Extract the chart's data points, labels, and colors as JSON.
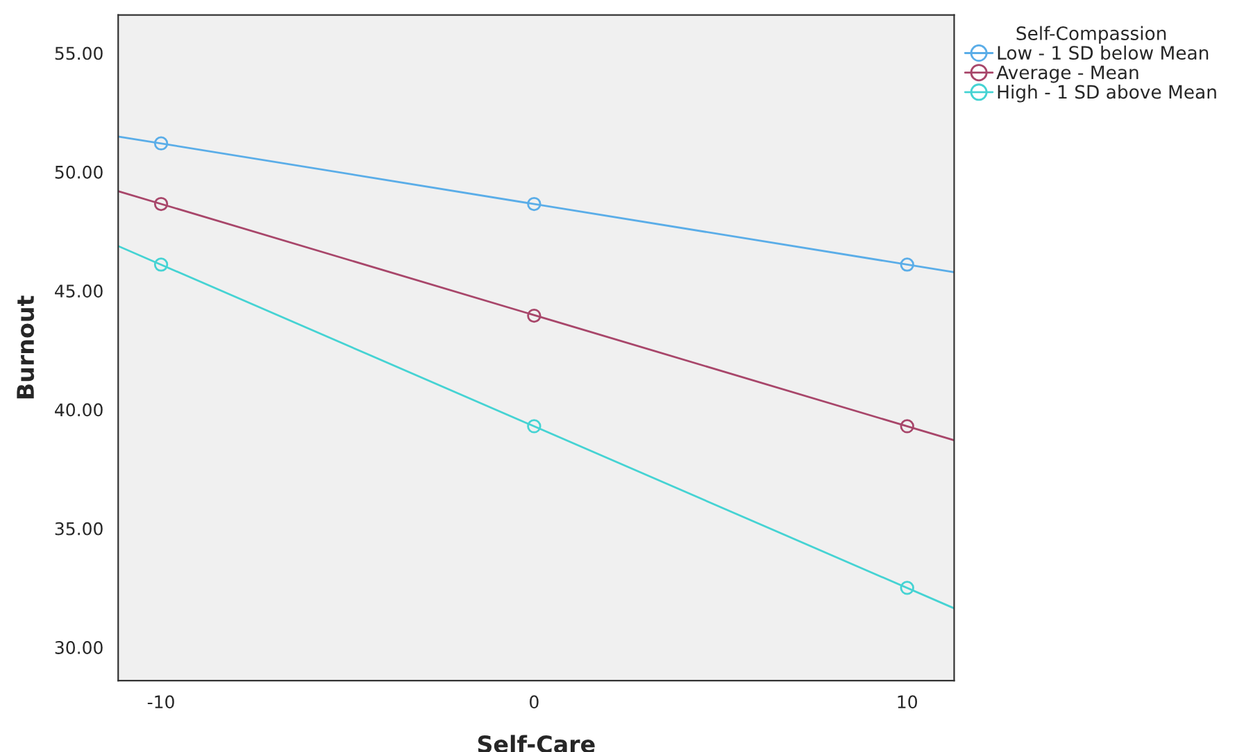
{
  "chart_data": {
    "type": "scatter",
    "xlabel": "Self-Care",
    "ylabel": "Burnout",
    "legend_title": "Self-Compassion",
    "legend": "top right",
    "marker": "circle",
    "grid": false,
    "xlim": [
      -11.15,
      11.26
    ],
    "xticks": [
      -10,
      0,
      10
    ],
    "ylim": [
      28.6,
      56.6
    ],
    "yticks": [
      {
        "value": 30,
        "label": "30.00"
      },
      {
        "value": 35,
        "label": "35.00"
      },
      {
        "value": 40,
        "label": "40.00"
      },
      {
        "value": 45,
        "label": "45.00"
      },
      {
        "value": 50,
        "label": "50.00"
      },
      {
        "value": 55,
        "label": "55.00"
      }
    ],
    "series": [
      {
        "name": "Low - 1 SD below Mean",
        "color": "#5aade8",
        "x": [
          -10,
          0,
          10
        ],
        "values": [
          51.2,
          48.65,
          46.1
        ]
      },
      {
        "name": "Average - Mean",
        "color": "#a8466a",
        "x": [
          -10,
          0,
          10
        ],
        "values": [
          48.65,
          43.95,
          39.3
        ]
      },
      {
        "name": "High - 1 SD above Mean",
        "color": "#45d3d3",
        "x": [
          -10,
          0,
          10
        ],
        "values": [
          46.1,
          39.3,
          32.5
        ]
      },
      {
        "type": "line",
        "marker": "none",
        "color": "#5aade8",
        "x": [
          -11.15,
          11.26
        ],
        "values": [
          51.49,
          45.78
        ]
      },
      {
        "type": "line",
        "marker": "none",
        "color": "#a8466a",
        "x": [
          -11.15,
          11.26
        ],
        "values": [
          49.19,
          38.71
        ]
      },
      {
        "type": "line",
        "marker": "none",
        "color": "#45d3d3",
        "x": [
          -11.15,
          11.26
        ],
        "values": [
          46.88,
          31.64
        ]
      }
    ]
  }
}
